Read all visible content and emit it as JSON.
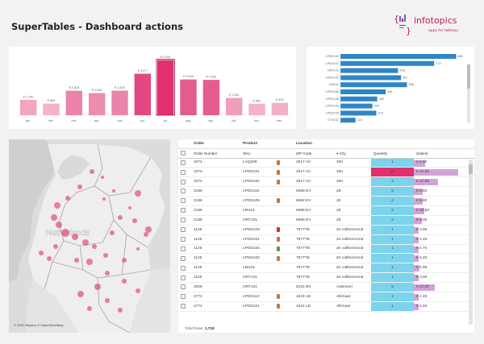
{
  "header": {
    "title": "SuperTables - Dashboard actions"
  },
  "logo": {
    "name": "infotopics",
    "tagline": "apps for tableau"
  },
  "colors": {
    "accent": "#e0306e",
    "light_pink": "#f7c2d6",
    "blue_bar": "#2f86c6",
    "quantity_fill": "#7cd3ec",
    "sales_fill": "#d3a3d8",
    "map_dot": "#e0306e"
  },
  "chart_data": [
    {
      "type": "bar",
      "title": "",
      "categories": [
        "jan.",
        "feb.",
        "mrt.",
        "apr.",
        "mei",
        "jun.",
        "jul.",
        "aug.",
        "sep.",
        "okt.",
        "nov.",
        "dec."
      ],
      "values": [
        1140,
        860,
        1818,
        1640,
        1820,
        3077,
        4090,
        2649,
        2620,
        1282,
        850,
        920
      ],
      "labels": [
        "€ 1.140",
        "€ 860",
        "€ 1.818",
        "€ 1.640",
        "€ 1.820",
        "€ 3.077",
        "€ 4.090",
        "€ 2.649",
        "€ 2.620",
        "€ 1.282",
        "€ 850",
        "€ 920"
      ],
      "ylim": [
        0,
        4300
      ]
    },
    {
      "type": "bar",
      "orientation": "horizontal",
      "categories": [
        "LPDD109",
        "LPDD101",
        "ORT101",
        "LPDD102",
        "LBI101",
        "LPDD106",
        "LPDD108",
        "LPDD103",
        "LPDD105",
        "CTN102"
      ],
      "values": [
        880,
        713,
        438,
        461,
        506,
        344,
        280,
        243,
        273,
        115
      ],
      "labels": [
        "880",
        "713",
        "438",
        "461",
        "506",
        "344",
        "280",
        "243",
        "273",
        "115"
      ],
      "xlim": [
        0,
        920
      ]
    }
  ],
  "map": {
    "label": "Netherlands",
    "copyright": "© 2021 Mapbox © OpenStreetMap",
    "dots": [
      {
        "x": 160,
        "y": 67,
        "r": 4
      },
      {
        "x": 156,
        "y": 101,
        "r": 3
      },
      {
        "x": 173,
        "y": 112,
        "r": 4
      },
      {
        "x": 138,
        "y": 97,
        "r": 3
      },
      {
        "x": 103,
        "y": 40,
        "r": 3
      },
      {
        "x": 116,
        "y": 47,
        "r": 2
      },
      {
        "x": 88,
        "y": 59,
        "r": 3
      },
      {
        "x": 73,
        "y": 73,
        "r": 3
      },
      {
        "x": 60,
        "y": 82,
        "r": 4
      },
      {
        "x": 56,
        "y": 97,
        "r": 4
      },
      {
        "x": 62,
        "y": 106,
        "r": 4
      },
      {
        "x": 70,
        "y": 116,
        "r": 5
      },
      {
        "x": 82,
        "y": 121,
        "r": 4
      },
      {
        "x": 95,
        "y": 128,
        "r": 4
      },
      {
        "x": 106,
        "y": 133,
        "r": 3
      },
      {
        "x": 58,
        "y": 133,
        "r": 3
      },
      {
        "x": 40,
        "y": 141,
        "r": 3
      },
      {
        "x": 50,
        "y": 148,
        "r": 3
      },
      {
        "x": 120,
        "y": 144,
        "r": 3
      },
      {
        "x": 143,
        "y": 150,
        "r": 3
      },
      {
        "x": 160,
        "y": 136,
        "r": 2
      },
      {
        "x": 170,
        "y": 118,
        "r": 3
      },
      {
        "x": 100,
        "y": 152,
        "r": 4
      },
      {
        "x": 122,
        "y": 166,
        "r": 3
      },
      {
        "x": 110,
        "y": 183,
        "r": 4
      },
      {
        "x": 89,
        "y": 192,
        "r": 4
      },
      {
        "x": 100,
        "y": 210,
        "r": 3
      },
      {
        "x": 122,
        "y": 200,
        "r": 3
      },
      {
        "x": 138,
        "y": 212,
        "r": 3
      },
      {
        "x": 160,
        "y": 188,
        "r": 3
      },
      {
        "x": 143,
        "y": 176,
        "r": 3
      },
      {
        "x": 130,
        "y": 64,
        "r": 2
      },
      {
        "x": 118,
        "y": 74,
        "r": 2
      },
      {
        "x": 150,
        "y": 85,
        "r": 2
      },
      {
        "x": 84,
        "y": 150,
        "r": 3
      },
      {
        "x": 128,
        "y": 116,
        "r": 3
      }
    ]
  },
  "table": {
    "groups": [
      "Order",
      "Product",
      "Location"
    ],
    "columns": [
      "Order Number",
      "SKU",
      "ZIP Code",
      "City",
      "Quantity",
      "(Sales)"
    ],
    "rows": [
      {
        "order": "2374",
        "sku": "LAQ208",
        "icon": "#c27a3c",
        "zip": "2517 AC",
        "city": "250",
        "qty": "1",
        "sales": "€ 6,90",
        "frac": 0.25
      },
      {
        "order": "2374",
        "sku": "LPDD101",
        "icon": "#c27a3c",
        "zip": "2517 AC",
        "city": "250",
        "qty": "10",
        "sales": "€ 44,50",
        "frac": 1.0,
        "hi": true
      },
      {
        "order": "2374",
        "sku": "LPDD102",
        "icon": "#c27a3c",
        "zip": "2517 AC",
        "city": "250",
        "qty": "4",
        "sales": "€ 17,80",
        "frac": 0.55
      },
      {
        "order": "2186",
        "sku": "LPDD110",
        "icon": "",
        "zip": "5688 EV",
        "city": "28",
        "qty": "2",
        "sales": "€ 8,60",
        "frac": 0.2
      },
      {
        "order": "2186",
        "sku": "LPDD109",
        "icon": "#c27a3c",
        "zip": "5688 EV",
        "city": "28",
        "qty": "2",
        "sales": "€ 8,60",
        "frac": 0.2
      },
      {
        "order": "2186",
        "sku": "LBI101",
        "icon": "",
        "zip": "5688 EV",
        "city": "28",
        "qty": "2",
        "sales": "€ 10,50",
        "frac": 0.24
      },
      {
        "order": "2186",
        "sku": "ORT101",
        "icon": "",
        "zip": "5688 EV",
        "city": "28",
        "qty": "2",
        "sales": "€ 8,00",
        "frac": 0.19
      },
      {
        "order": "1126",
        "sku": "LPDD103",
        "icon": "#d9263d",
        "zip": "7877TB",
        "city": "Ze valthermond",
        "qty": "1",
        "sales": "€ 3,95",
        "frac": 0.1
      },
      {
        "order": "1126",
        "sku": "LPDD101",
        "icon": "#c27a3c",
        "zip": "7877TB",
        "city": "Ze valthermond",
        "qty": "1",
        "sales": "€ 4,45",
        "frac": 0.11
      },
      {
        "order": "1126",
        "sku": "LPDD104",
        "icon": "#5aa02c",
        "zip": "7877TB",
        "city": "Ze valthermond",
        "qty": "1",
        "sales": "€ 4,70",
        "frac": 0.11
      },
      {
        "order": "1126",
        "sku": "LPDD102",
        "icon": "#c27a3c",
        "zip": "7877TB",
        "city": "Ze valthermond",
        "qty": "1",
        "sales": "€ 4,45",
        "frac": 0.11
      },
      {
        "order": "1126",
        "sku": "LBI101",
        "icon": "",
        "zip": "7877TB",
        "city": "Ze valthermond",
        "qty": "1",
        "sales": "€ 4,95",
        "frac": 0.12
      },
      {
        "order": "1126",
        "sku": "ORT101",
        "icon": "",
        "zip": "7877TB",
        "city": "Ze valthermond",
        "qty": "1",
        "sales": "€ 3,95",
        "frac": 0.1
      },
      {
        "order": "2608",
        "sku": "ORT101",
        "icon": "",
        "zip": "5432 BS",
        "city": "Aalsmeer",
        "qty": "5",
        "sales": "€ 21,00",
        "frac": 0.48
      },
      {
        "order": "2774",
        "sku": "LPDD114",
        "icon": "#c27a3c",
        "zip": "1824 LB",
        "city": "Alkmaar",
        "qty": "1",
        "sales": "€ 4,45",
        "frac": 0.11
      },
      {
        "order": "2774",
        "sku": "LPDD101",
        "icon": "#c27a3c",
        "zip": "1824 LB",
        "city": "Alkmaar",
        "qty": "1",
        "sales": "€ 4,45",
        "frac": 0.11
      }
    ],
    "total_label": "Total Rows:",
    "total_value": "1,719"
  }
}
